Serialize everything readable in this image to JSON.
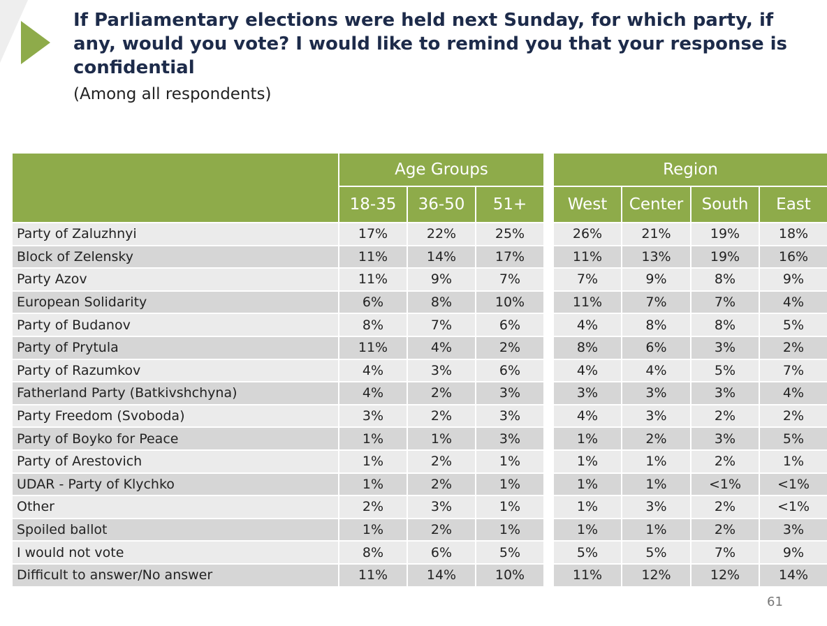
{
  "header": {
    "title": "If Parliamentary elections were held next Sunday, for which party, if any, would you vote? I would like to remind you that your response is confidential",
    "subtitle": "(Among all respondents)"
  },
  "table": {
    "groups": [
      {
        "label": "Age Groups",
        "columns": [
          "18-35",
          "36-50",
          "51+"
        ]
      },
      {
        "label": "Region",
        "columns": [
          "West",
          "Center",
          "South",
          "East"
        ]
      }
    ],
    "rows": [
      {
        "label": "Party of Zaluzhnyi",
        "values": [
          "17%",
          "22%",
          "25%",
          "26%",
          "21%",
          "19%",
          "18%"
        ]
      },
      {
        "label": "Block of Zelensky",
        "values": [
          "11%",
          "14%",
          "17%",
          "11%",
          "13%",
          "19%",
          "16%"
        ]
      },
      {
        "label": "Party Azov",
        "values": [
          "11%",
          "9%",
          "7%",
          "7%",
          "9%",
          "8%",
          "9%"
        ]
      },
      {
        "label": "European Solidarity",
        "values": [
          "6%",
          "8%",
          "10%",
          "11%",
          "7%",
          "7%",
          "4%"
        ]
      },
      {
        "label": "Party of Budanov",
        "values": [
          "8%",
          "7%",
          "6%",
          "4%",
          "8%",
          "8%",
          "5%"
        ]
      },
      {
        "label": "Party of Prytula",
        "values": [
          "11%",
          "4%",
          "2%",
          "8%",
          "6%",
          "3%",
          "2%"
        ]
      },
      {
        "label": "Party of Razumkov",
        "values": [
          "4%",
          "3%",
          "6%",
          "4%",
          "4%",
          "5%",
          "7%"
        ]
      },
      {
        "label": "Fatherland Party (Batkivshchyna)",
        "values": [
          "4%",
          "2%",
          "3%",
          "3%",
          "3%",
          "3%",
          "4%"
        ]
      },
      {
        "label": "Party Freedom (Svoboda)",
        "values": [
          "3%",
          "2%",
          "3%",
          "4%",
          "3%",
          "2%",
          "2%"
        ]
      },
      {
        "label": "Party of Boyko for Peace",
        "values": [
          "1%",
          "1%",
          "3%",
          "1%",
          "2%",
          "3%",
          "5%"
        ]
      },
      {
        "label": "Party of Arestovich",
        "values": [
          "1%",
          "2%",
          "1%",
          "1%",
          "1%",
          "2%",
          "1%"
        ]
      },
      {
        "label": "UDAR - Party of Klychko",
        "values": [
          "1%",
          "2%",
          "1%",
          "1%",
          "1%",
          "<1%",
          "<1%"
        ]
      },
      {
        "label": "Other",
        "values": [
          "2%",
          "3%",
          "1%",
          "1%",
          "3%",
          "2%",
          "<1%"
        ]
      },
      {
        "label": "Spoiled ballot",
        "values": [
          "1%",
          "2%",
          "1%",
          "1%",
          "1%",
          "2%",
          "3%"
        ]
      },
      {
        "label": "I would not vote",
        "values": [
          "8%",
          "6%",
          "5%",
          "5%",
          "5%",
          "7%",
          "9%"
        ]
      },
      {
        "label": "Difficult to answer/No answer",
        "values": [
          "11%",
          "14%",
          "10%",
          "11%",
          "12%",
          "12%",
          "14%"
        ]
      }
    ]
  },
  "footer": {
    "page_number": "61"
  }
}
